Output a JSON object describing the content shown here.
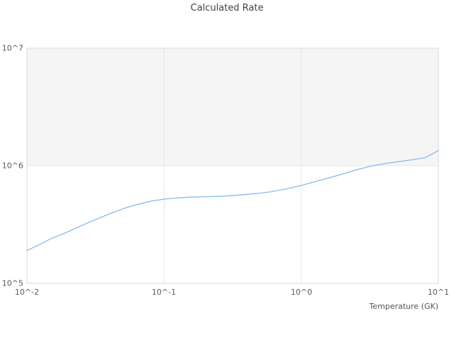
{
  "chart_data": {
    "type": "line",
    "title": "Calculated Rate",
    "xlabel": "Temperature (GK)",
    "ylabel": "",
    "x_scale": "log",
    "y_scale": "log",
    "xlim": [
      0.01,
      10
    ],
    "ylim": [
      100000,
      10000000
    ],
    "x_tick_labels": [
      "10^-2",
      "10^-1",
      "10^0",
      "10^1"
    ],
    "y_tick_labels": [
      "10^5",
      "10^6",
      "10^7"
    ],
    "grid": true,
    "legend": "none",
    "plot_bands": [
      {
        "from": 1000000,
        "to": 10000000,
        "color": "#f5f5f5"
      }
    ],
    "colors": {
      "grid": "#e7e7e7",
      "border": "#d9d9d9",
      "line": "#7cb5ec"
    },
    "series": [
      {
        "name": "Calculated Rate",
        "color": "#7cb5ec",
        "x": [
          0.01,
          0.012,
          0.015,
          0.02,
          0.025,
          0.03,
          0.04,
          0.05,
          0.06,
          0.08,
          0.1,
          0.12,
          0.15,
          0.2,
          0.25,
          0.3,
          0.4,
          0.5,
          0.6,
          0.8,
          1.0,
          1.25,
          1.6,
          2.0,
          2.5,
          3.2,
          4.0,
          5.0,
          6.3,
          8.0,
          10.0
        ],
        "y": [
          190000,
          210000,
          240000,
          275000,
          310000,
          340000,
          390000,
          430000,
          460000,
          500000,
          520000,
          530000,
          540000,
          545000,
          550000,
          555000,
          570000,
          585000,
          600000,
          640000,
          680000,
          730000,
          790000,
          850000,
          920000,
          990000,
          1040000,
          1080000,
          1120000,
          1170000,
          1350000
        ]
      }
    ]
  }
}
